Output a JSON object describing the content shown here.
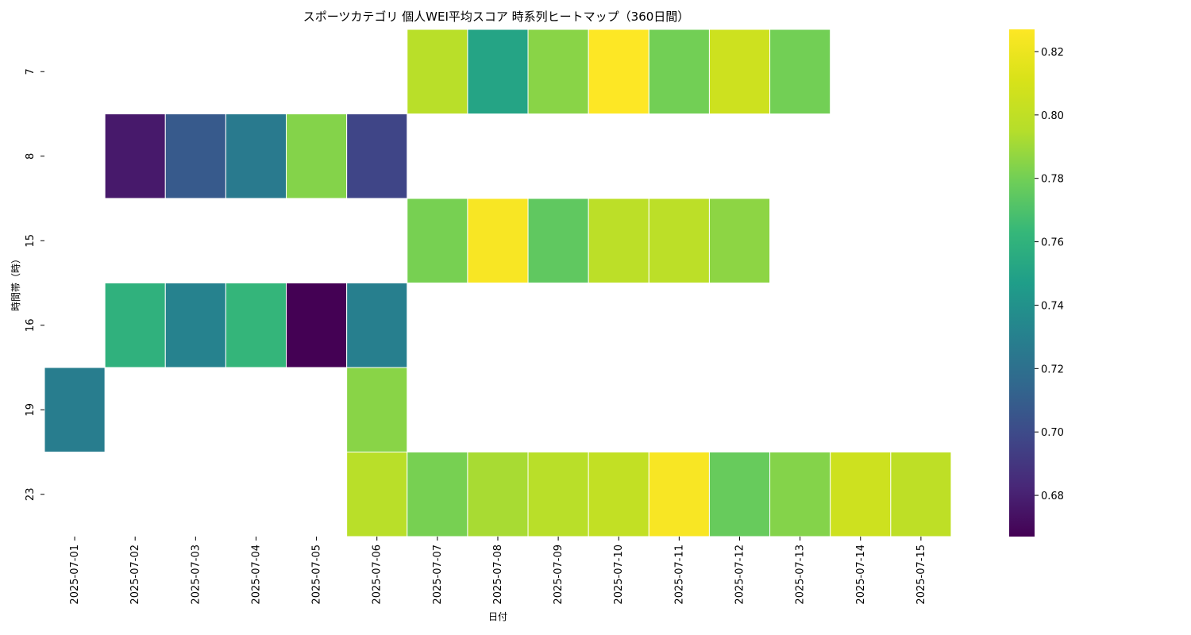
{
  "chart_data": {
    "type": "heatmap",
    "title": "スポーツカテゴリ 個人WEI平均スコア 時系列ヒートマップ（360日間）",
    "xlabel": "日付",
    "ylabel": "時間帯（時）",
    "x_categories": [
      "2025-07-01",
      "2025-07-02",
      "2025-07-03",
      "2025-07-04",
      "2025-07-05",
      "2025-07-06",
      "2025-07-07",
      "2025-07-08",
      "2025-07-09",
      "2025-07-10",
      "2025-07-11",
      "2025-07-12",
      "2025-07-13",
      "2025-07-14",
      "2025-07-15"
    ],
    "y_categories": [
      "7",
      "8",
      "15",
      "16",
      "19",
      "23"
    ],
    "values": [
      [
        null,
        null,
        null,
        null,
        null,
        null,
        0.797,
        0.751,
        0.785,
        0.827,
        0.78,
        0.806,
        0.78,
        null,
        null
      ],
      [
        null,
        0.677,
        0.708,
        0.726,
        0.784,
        0.697,
        null,
        null,
        null,
        null,
        null,
        null,
        null,
        null,
        null
      ],
      [
        null,
        null,
        null,
        null,
        null,
        null,
        0.781,
        0.825,
        0.775,
        0.798,
        0.798,
        0.786,
        null,
        null,
        null
      ],
      [
        null,
        0.759,
        0.731,
        0.762,
        0.667,
        0.729,
        null,
        null,
        null,
        null,
        null,
        null,
        null,
        null,
        null
      ],
      [
        0.728,
        null,
        null,
        null,
        null,
        0.785,
        null,
        null,
        null,
        null,
        null,
        null,
        null,
        null,
        null
      ],
      [
        null,
        null,
        null,
        null,
        null,
        0.797,
        0.781,
        0.792,
        0.797,
        0.801,
        0.825,
        0.777,
        0.784,
        0.806,
        0.799
      ]
    ],
    "colormap": "viridis",
    "vmin": 0.667,
    "vmax": 0.827,
    "colorbar_ticks": [
      "0.68",
      "0.70",
      "0.72",
      "0.74",
      "0.76",
      "0.78",
      "0.80",
      "0.82"
    ],
    "colorbar_placement": "right"
  }
}
